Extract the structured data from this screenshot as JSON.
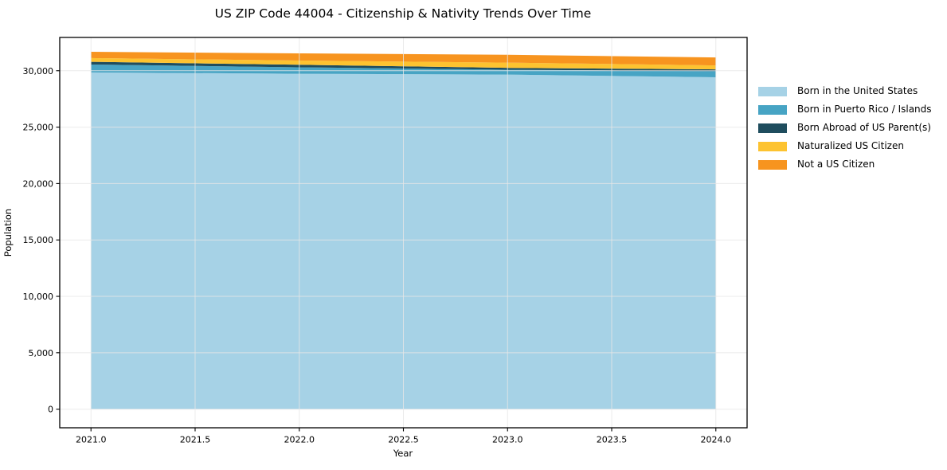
{
  "figure": {
    "background": "#ffffff",
    "title": "US ZIP Code 44004 - Citizenship & Nativity Trends Over Time",
    "xlabel": "Year",
    "ylabel": "Population"
  },
  "chart_data": {
    "type": "area",
    "stacked": true,
    "title": "US ZIP Code 44004 - Citizenship & Nativity Trends Over Time",
    "xlabel": "Year",
    "ylabel": "Population",
    "x": [
      2021,
      2022,
      2023,
      2024
    ],
    "series": [
      {
        "name": "Born in the United States",
        "color": "#a6d2e6",
        "values": [
          29850,
          29730,
          29660,
          29420
        ]
      },
      {
        "name": "Born in Puerto Rico / Islands",
        "color": "#47a4c4",
        "values": [
          700,
          570,
          430,
          540
        ]
      },
      {
        "name": "Born Abroad of US Parent(s)",
        "color": "#1f4d5e",
        "values": [
          240,
          230,
          160,
          160
        ]
      },
      {
        "name": "Naturalized US Citizen",
        "color": "#fdc330",
        "values": [
          330,
          370,
          470,
          350
        ]
      },
      {
        "name": "Not a US Citizen",
        "color": "#f7941f",
        "values": [
          560,
          640,
          700,
          710
        ]
      }
    ],
    "totals": [
      31680,
      31540,
      31420,
      31180
    ],
    "xlim": [
      2020.85,
      2024.15
    ],
    "ylim": [
      -1650,
      32950
    ],
    "x_ticks": {
      "values": [
        2021.0,
        2021.5,
        2022.0,
        2022.5,
        2023.0,
        2023.5,
        2024.0
      ],
      "labels": [
        "2021.0",
        "2021.5",
        "2022.0",
        "2022.5",
        "2023.0",
        "2023.5",
        "2024.0"
      ]
    },
    "y_ticks": {
      "values": [
        0,
        5000,
        10000,
        15000,
        20000,
        25000,
        30000
      ],
      "labels": [
        "0",
        "5,000",
        "10,000",
        "15,000",
        "20,000",
        "25,000",
        "30,000"
      ]
    },
    "grid": true,
    "grid_color": "#e7e7e7",
    "spine_color": "#000000",
    "legend_position": "right-outside"
  }
}
